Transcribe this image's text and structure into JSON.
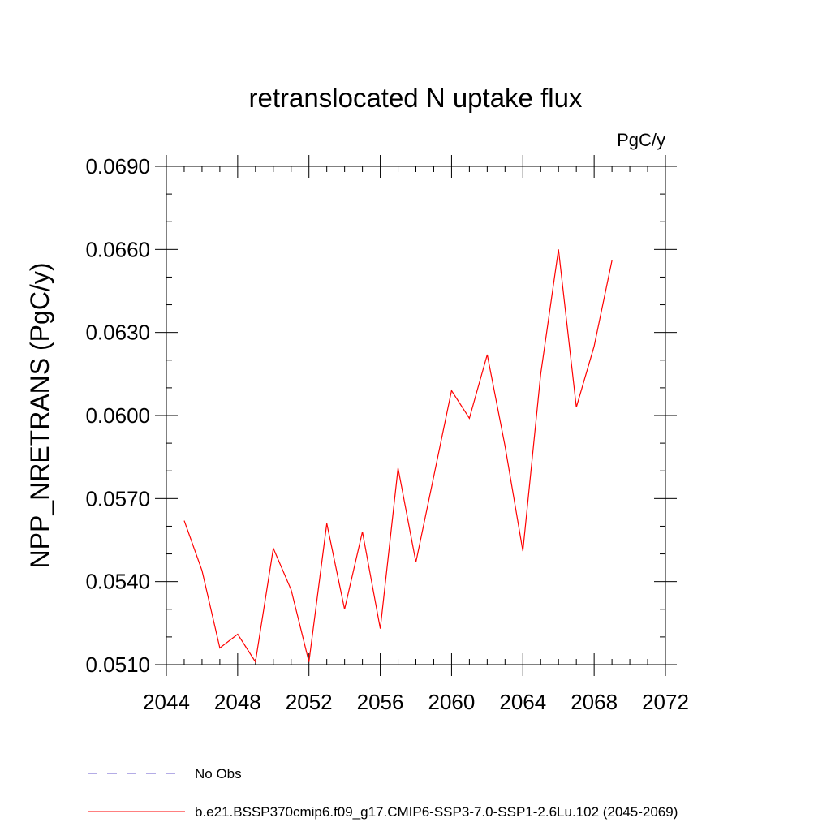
{
  "chart_data": {
    "type": "line",
    "title": "retranslocated N uptake flux",
    "units_label": "PgC/y",
    "ylabel": "NPP_NRETRANS  (PgC/y)",
    "xlabel": "",
    "xlim": [
      2044,
      2072
    ],
    "ylim": [
      0.051,
      0.069
    ],
    "x_major_ticks": [
      2044,
      2048,
      2052,
      2056,
      2060,
      2064,
      2068,
      2072
    ],
    "x_tick_labels": [
      "2044",
      "2048",
      "2052",
      "2056",
      "2060",
      "2064",
      "2068",
      "2072"
    ],
    "x_minor_step": 1,
    "y_major_ticks": [
      0.051,
      0.054,
      0.057,
      0.06,
      0.063,
      0.066,
      0.069
    ],
    "y_tick_labels": [
      "0.0510",
      "0.0540",
      "0.0570",
      "0.0600",
      "0.0630",
      "0.0660",
      "0.0690"
    ],
    "y_minor_step": 0.001,
    "grid": false,
    "legend_position": "bottom",
    "series": [
      {
        "name": "No Obs",
        "style": "dashed",
        "color": "#6a5acd",
        "x": [],
        "y": []
      },
      {
        "name": "b.e21.BSSP370cmip6.f09_g17.CMIP6-SSP3-7.0-SSP1-2.6Lu.102 (2045-2069)",
        "style": "solid",
        "color": "#ff0000",
        "x": [
          2045,
          2046,
          2047,
          2048,
          2049,
          2050,
          2051,
          2052,
          2053,
          2054,
          2055,
          2056,
          2057,
          2058,
          2059,
          2060,
          2061,
          2062,
          2063,
          2064,
          2065,
          2066,
          2067,
          2068,
          2069
        ],
        "y": [
          0.0562,
          0.0544,
          0.0516,
          0.0521,
          0.0511,
          0.0552,
          0.0537,
          0.0511,
          0.0561,
          0.053,
          0.0558,
          0.0523,
          0.0581,
          0.0547,
          0.0578,
          0.0609,
          0.0599,
          0.0622,
          0.0589,
          0.0551,
          0.0615,
          0.066,
          0.0603,
          0.0625,
          0.0656
        ]
      }
    ]
  }
}
